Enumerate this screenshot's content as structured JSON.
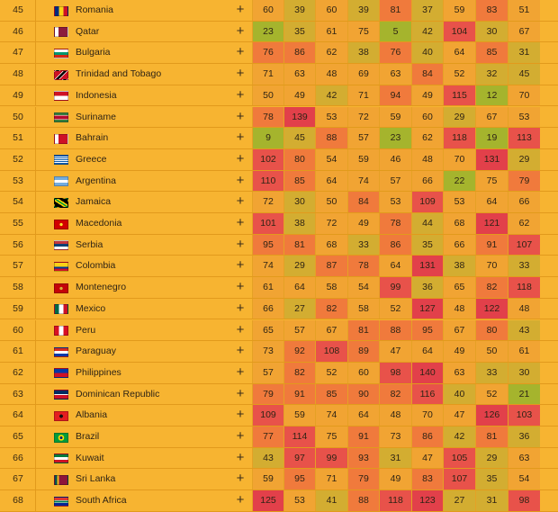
{
  "colors": {
    "page_background": "#f7b431",
    "scale": {
      "low": "#a5b42d",
      "mid_low": "#d3ad31",
      "mid": "#f1a433",
      "mid_high": "#f07a3c",
      "high": "#e8524a",
      "very_high": "#e2404a"
    }
  },
  "icons": {
    "expand": "plus-icon"
  },
  "rows": [
    {
      "rank": "45",
      "country": "Romania",
      "flag": "romania",
      "values": [
        "60",
        "39",
        "60",
        "39",
        "81",
        "37",
        "59",
        "83",
        "51"
      ]
    },
    {
      "rank": "46",
      "country": "Qatar",
      "flag": "qatar",
      "values": [
        "23",
        "35",
        "61",
        "75",
        "5",
        "42",
        "104",
        "30",
        "67"
      ]
    },
    {
      "rank": "47",
      "country": "Bulgaria",
      "flag": "bulgaria",
      "values": [
        "76",
        "86",
        "62",
        "38",
        "76",
        "40",
        "64",
        "85",
        "31"
      ]
    },
    {
      "rank": "48",
      "country": "Trinidad and Tobago",
      "flag": "trinidad",
      "values": [
        "71",
        "63",
        "48",
        "69",
        "63",
        "84",
        "52",
        "32",
        "45"
      ]
    },
    {
      "rank": "49",
      "country": "Indonesia",
      "flag": "indonesia",
      "values": [
        "50",
        "49",
        "42",
        "71",
        "94",
        "49",
        "115",
        "12",
        "70"
      ]
    },
    {
      "rank": "50",
      "country": "Suriname",
      "flag": "suriname",
      "values": [
        "78",
        "139",
        "53",
        "72",
        "59",
        "60",
        "29",
        "67",
        "53"
      ]
    },
    {
      "rank": "51",
      "country": "Bahrain",
      "flag": "bahrain",
      "values": [
        "9",
        "45",
        "88",
        "57",
        "23",
        "62",
        "118",
        "19",
        "113"
      ]
    },
    {
      "rank": "52",
      "country": "Greece",
      "flag": "greece",
      "values": [
        "102",
        "80",
        "54",
        "59",
        "46",
        "48",
        "70",
        "131",
        "29"
      ]
    },
    {
      "rank": "53",
      "country": "Argentina",
      "flag": "argentina",
      "values": [
        "110",
        "85",
        "64",
        "74",
        "57",
        "66",
        "22",
        "75",
        "79"
      ]
    },
    {
      "rank": "54",
      "country": "Jamaica",
      "flag": "jamaica",
      "values": [
        "72",
        "30",
        "50",
        "84",
        "53",
        "109",
        "53",
        "64",
        "66"
      ]
    },
    {
      "rank": "55",
      "country": "Macedonia",
      "flag": "macedonia",
      "values": [
        "101",
        "38",
        "72",
        "49",
        "78",
        "44",
        "68",
        "121",
        "62"
      ]
    },
    {
      "rank": "56",
      "country": "Serbia",
      "flag": "serbia",
      "values": [
        "95",
        "81",
        "68",
        "33",
        "86",
        "35",
        "66",
        "91",
        "107"
      ]
    },
    {
      "rank": "57",
      "country": "Colombia",
      "flag": "colombia",
      "values": [
        "74",
        "29",
        "87",
        "78",
        "64",
        "131",
        "38",
        "70",
        "33"
      ]
    },
    {
      "rank": "58",
      "country": "Montenegro",
      "flag": "montenegro",
      "values": [
        "61",
        "64",
        "58",
        "54",
        "99",
        "36",
        "65",
        "82",
        "118"
      ]
    },
    {
      "rank": "59",
      "country": "Mexico",
      "flag": "mexico",
      "values": [
        "66",
        "27",
        "82",
        "58",
        "52",
        "127",
        "48",
        "122",
        "48"
      ]
    },
    {
      "rank": "60",
      "country": "Peru",
      "flag": "peru",
      "values": [
        "65",
        "57",
        "67",
        "81",
        "88",
        "95",
        "67",
        "80",
        "43"
      ]
    },
    {
      "rank": "61",
      "country": "Paraguay",
      "flag": "paraguay",
      "values": [
        "73",
        "92",
        "108",
        "89",
        "47",
        "64",
        "49",
        "50",
        "61"
      ]
    },
    {
      "rank": "62",
      "country": "Philippines",
      "flag": "philippines",
      "values": [
        "57",
        "82",
        "52",
        "60",
        "98",
        "140",
        "63",
        "33",
        "30"
      ]
    },
    {
      "rank": "63",
      "country": "Dominican Republic",
      "flag": "dominican",
      "values": [
        "79",
        "91",
        "85",
        "90",
        "82",
        "116",
        "40",
        "52",
        "21"
      ]
    },
    {
      "rank": "64",
      "country": "Albania",
      "flag": "albania",
      "values": [
        "109",
        "59",
        "74",
        "64",
        "48",
        "70",
        "47",
        "126",
        "103"
      ]
    },
    {
      "rank": "65",
      "country": "Brazil",
      "flag": "brazil",
      "values": [
        "77",
        "114",
        "75",
        "91",
        "73",
        "86",
        "42",
        "81",
        "36"
      ]
    },
    {
      "rank": "66",
      "country": "Kuwait",
      "flag": "kuwait",
      "values": [
        "43",
        "97",
        "99",
        "93",
        "31",
        "47",
        "105",
        "29",
        "63"
      ]
    },
    {
      "rank": "67",
      "country": "Sri Lanka",
      "flag": "srilanka",
      "values": [
        "59",
        "95",
        "71",
        "79",
        "49",
        "83",
        "107",
        "35",
        "54"
      ]
    },
    {
      "rank": "68",
      "country": "South Africa",
      "flag": "southafrica",
      "values": [
        "125",
        "53",
        "41",
        "88",
        "118",
        "123",
        "27",
        "31",
        "98"
      ]
    }
  ]
}
